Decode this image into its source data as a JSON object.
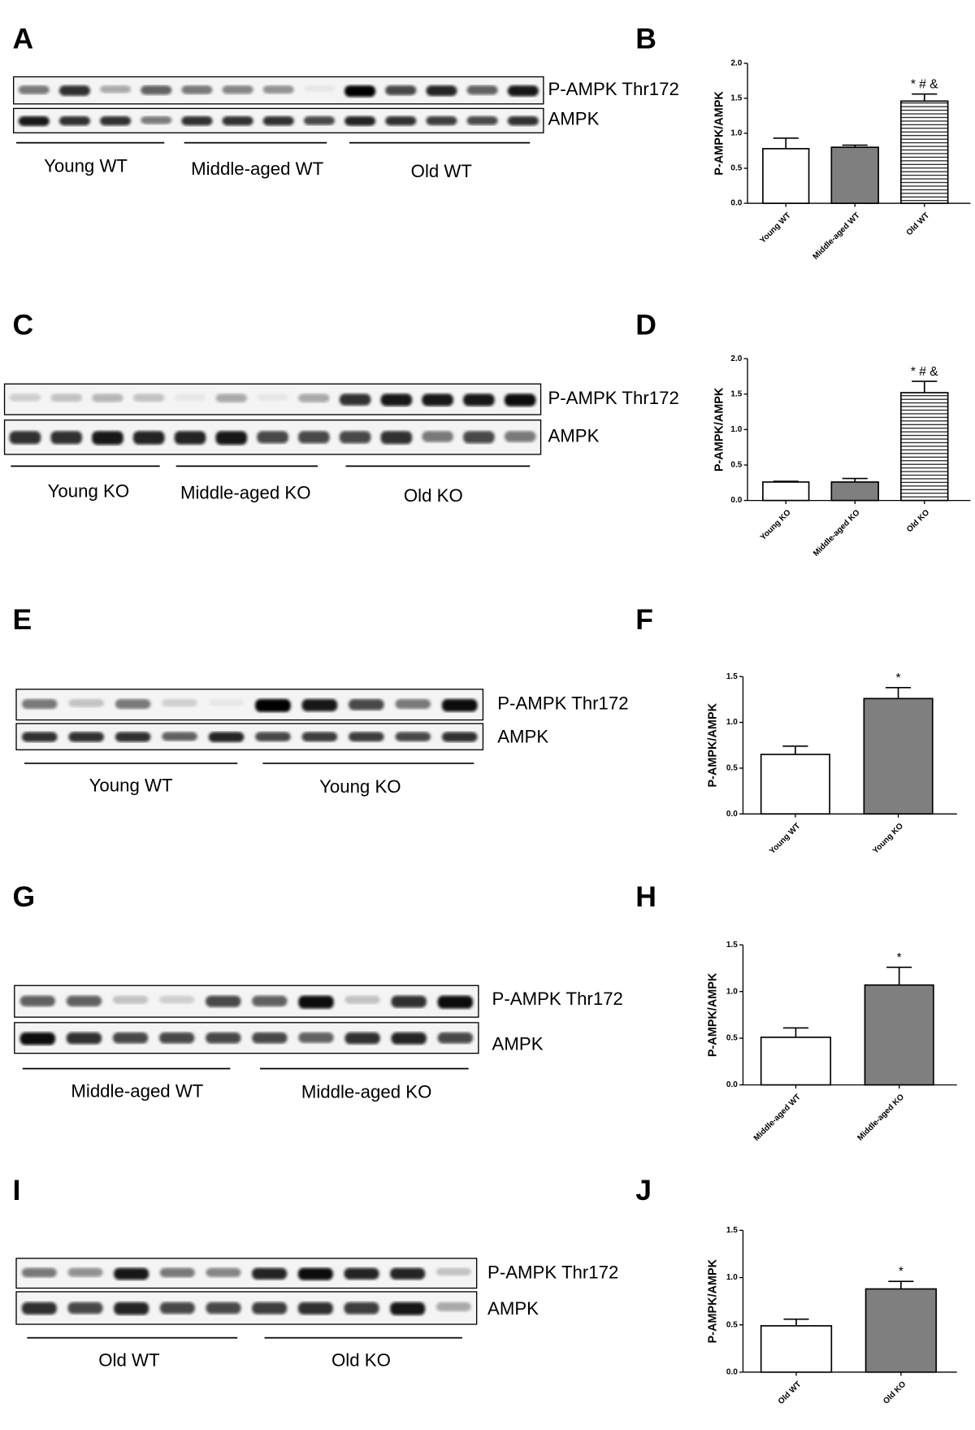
{
  "blots": [
    {
      "panel": "A",
      "rows": [
        "P-AMPK Thr172",
        "AMPK"
      ],
      "groups": [
        "Young WT",
        "Middle-aged WT",
        "Old WT"
      ]
    },
    {
      "panel": "C",
      "rows": [
        "P-AMPK Thr172",
        "AMPK"
      ],
      "groups": [
        "Young KO",
        "Middle-aged KO",
        "Old KO"
      ]
    },
    {
      "panel": "E",
      "rows": [
        "P-AMPK Thr172",
        "AMPK"
      ],
      "groups": [
        "Young WT",
        "Young KO"
      ]
    },
    {
      "panel": "G",
      "rows": [
        "P-AMPK Thr172",
        "AMPK"
      ],
      "groups": [
        "Middle-aged WT",
        "Middle-aged KO"
      ]
    },
    {
      "panel": "I",
      "rows": [
        "P-AMPK Thr172",
        "AMPK"
      ],
      "groups": [
        "Old WT",
        "Old KO"
      ]
    }
  ],
  "chart_data": [
    {
      "type": "bar",
      "panel": "B",
      "ylabel": "P-AMPK/AMPK",
      "categories": [
        "Young WT",
        "Middle-aged WT",
        "Old WT"
      ],
      "values": [
        0.78,
        0.8,
        1.46
      ],
      "errors": [
        0.15,
        0.03,
        0.1
      ],
      "colors": [
        "#ffffff",
        "#7f7f7f",
        "#ffffff"
      ],
      "patterns": [
        "solid",
        "solid",
        "horizontal-lines"
      ],
      "ylim": [
        0,
        2
      ],
      "yticks": [
        {
          "value": 0,
          "label": "0.0"
        },
        {
          "value": 0.5,
          "label": "0.5"
        },
        {
          "value": 1,
          "label": "1.0"
        },
        {
          "value": 1.5,
          "label": "1.5"
        },
        {
          "value": 2,
          "label": "2.0"
        }
      ],
      "annotations": [
        {
          "category": "Old WT",
          "text": "* # &"
        }
      ]
    },
    {
      "type": "bar",
      "panel": "D",
      "ylabel": "P-AMPK/AMPK",
      "categories": [
        "Young KO",
        "Middle-aged KO",
        "Old KO"
      ],
      "values": [
        0.26,
        0.26,
        1.52
      ],
      "errors": [
        0.01,
        0.05,
        0.16
      ],
      "colors": [
        "#ffffff",
        "#7f7f7f",
        "#ffffff"
      ],
      "patterns": [
        "solid",
        "solid",
        "horizontal-lines"
      ],
      "ylim": [
        0,
        2
      ],
      "yticks": [
        {
          "value": 0,
          "label": "0.0"
        },
        {
          "value": 0.5,
          "label": "0.5"
        },
        {
          "value": 1,
          "label": "1.0"
        },
        {
          "value": 1.5,
          "label": "1.5"
        },
        {
          "value": 2,
          "label": "2.0"
        }
      ],
      "annotations": [
        {
          "category": "Old KO",
          "text": "* # &"
        }
      ]
    },
    {
      "type": "bar",
      "panel": "F",
      "ylabel": "P-AMPK/AMPK",
      "categories": [
        "Young WT",
        "Young KO"
      ],
      "values": [
        0.65,
        1.26
      ],
      "errors": [
        0.09,
        0.12
      ],
      "colors": [
        "#ffffff",
        "#7f7f7f"
      ],
      "patterns": [
        "solid",
        "solid"
      ],
      "ylim": [
        0,
        1.5
      ],
      "yticks": [
        {
          "value": 0,
          "label": "0.0"
        },
        {
          "value": 0.5,
          "label": "0.5"
        },
        {
          "value": 1,
          "label": "1.0"
        },
        {
          "value": 1.5,
          "label": "1.5"
        }
      ],
      "annotations": [
        {
          "category": "Young KO",
          "text": "*"
        }
      ]
    },
    {
      "type": "bar",
      "panel": "H",
      "ylabel": "P-AMPK/AMPK",
      "categories": [
        "Middle-aged WT",
        "Middle-aged KO"
      ],
      "values": [
        0.51,
        1.07
      ],
      "errors": [
        0.1,
        0.19
      ],
      "colors": [
        "#ffffff",
        "#7f7f7f"
      ],
      "patterns": [
        "solid",
        "solid"
      ],
      "ylim": [
        0,
        1.5
      ],
      "yticks": [
        {
          "value": 0,
          "label": "0.0"
        },
        {
          "value": 0.5,
          "label": "0.5"
        },
        {
          "value": 1,
          "label": "1.0"
        },
        {
          "value": 1.5,
          "label": "1.5"
        }
      ],
      "annotations": [
        {
          "category": "Middle-aged KO",
          "text": "*"
        }
      ]
    },
    {
      "type": "bar",
      "panel": "J",
      "ylabel": "P-AMPK/AMPK",
      "categories": [
        "Old WT",
        "Old KO"
      ],
      "values": [
        0.49,
        0.88
      ],
      "errors": [
        0.07,
        0.08
      ],
      "colors": [
        "#ffffff",
        "#7f7f7f"
      ],
      "patterns": [
        "solid",
        "solid"
      ],
      "ylim": [
        0,
        1.5
      ],
      "yticks": [
        {
          "value": 0,
          "label": "0.0"
        },
        {
          "value": 0.5,
          "label": "0.5"
        },
        {
          "value": 1,
          "label": "1.0"
        },
        {
          "value": 1.5,
          "label": "1.5"
        }
      ],
      "annotations": [
        {
          "category": "Old KO",
          "text": "*"
        }
      ]
    }
  ]
}
